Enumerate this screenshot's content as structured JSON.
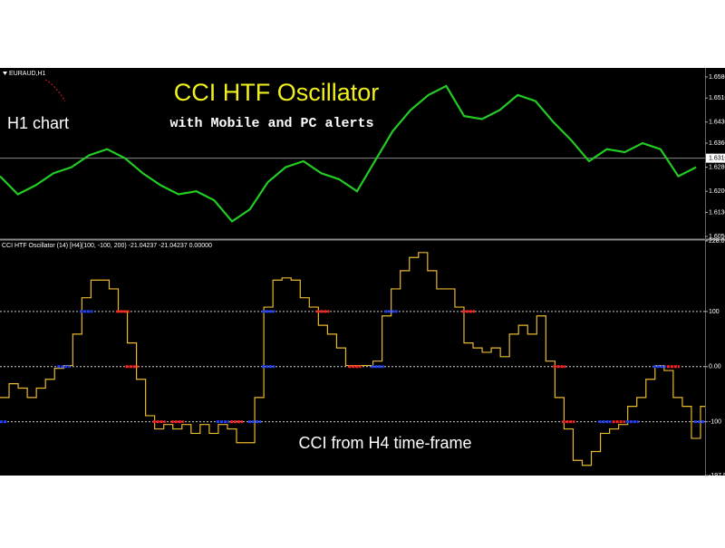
{
  "chart_data": [
    {
      "type": "line",
      "symbol": "EURAUD,H1",
      "title": "CCI HTF Oscillator",
      "subtitle": "with Mobile and PC alerts",
      "annotation": "H1 chart",
      "series": [
        {
          "color": "#22cc22",
          "values": [
            1.625,
            1.619,
            1.622,
            1.626,
            1.628,
            1.632,
            1.634,
            1.631,
            1.626,
            1.622,
            1.619,
            1.62,
            1.617,
            1.61,
            1.614,
            1.623,
            1.628,
            1.63,
            1.626,
            1.624,
            1.62,
            1.63,
            1.64,
            1.647,
            1.652,
            1.655,
            1.645,
            1.644,
            1.647,
            1.652,
            1.65,
            1.643,
            1.637,
            1.63,
            1.634,
            1.633,
            1.636,
            1.634,
            1.625,
            1.628
          ]
        }
      ],
      "ylim": [
        1.6044,
        1.661
      ],
      "yticks": [
        {
          "value": 1.658,
          "label": "1.6580"
        },
        {
          "value": 1.651,
          "label": "1.6510"
        },
        {
          "value": 1.643,
          "label": "1.6430"
        },
        {
          "value": 1.636,
          "label": "1.6360"
        },
        {
          "value": 1.628,
          "label": "1.6280"
        },
        {
          "value": 1.62,
          "label": "1.6200"
        },
        {
          "value": 1.613,
          "label": "1.6130"
        },
        {
          "value": 1.605,
          "label": "1.6050"
        }
      ],
      "current_price": {
        "value": 1.631,
        "label": "1.6310"
      }
    },
    {
      "type": "step",
      "header": "CCI HTF Oscillator (14) [H4](100, -100, 200) -21.04237 -21.04237 0.00000",
      "annotation": "CCI from H4 time-frame",
      "series": [
        {
          "color": "#e8b830",
          "values": [
            -56,
            -31,
            -39,
            -56,
            -39,
            -23,
            -3,
            2,
            59,
            125,
            157,
            157,
            141,
            100,
            43,
            -23,
            -89,
            -113,
            -105,
            -113,
            -105,
            -121,
            -105,
            -121,
            -105,
            -113,
            -138,
            -138,
            -56,
            108,
            157,
            161,
            157,
            125,
            108,
            75,
            59,
            34,
            2,
            2,
            2,
            10,
            92,
            141,
            174,
            198,
            207,
            174,
            141,
            141,
            108,
            43,
            34,
            26,
            34,
            18,
            59,
            75,
            59,
            92,
            10,
            -56,
            -113,
            -170,
            -179,
            -154,
            -121,
            -113,
            -105,
            -72,
            -56,
            -23,
            2,
            -7,
            -56,
            -72,
            -130,
            -72
          ]
        }
      ],
      "ylim": [
        -197.5,
        228.01
      ],
      "yticks": [
        228.01,
        100,
        {
          "value": 0,
          "label": "0.00"
        },
        -100,
        -197.5
      ],
      "levels": [
        100,
        0,
        -100
      ],
      "signals": [
        {
          "x": 0,
          "level": -100,
          "color": "#2040ff"
        },
        {
          "x": 7,
          "level": 0,
          "color": "#2040ff"
        },
        {
          "x": 9.5,
          "level": 100,
          "color": "#2040ff"
        },
        {
          "x": 13.5,
          "level": 100,
          "color": "#ff2020"
        },
        {
          "x": 14.5,
          "level": 0,
          "color": "#ff2020"
        },
        {
          "x": 17.5,
          "level": -100,
          "color": "#ff2020"
        },
        {
          "x": 19.5,
          "level": -100,
          "color": "#ff2020"
        },
        {
          "x": 24.5,
          "level": -100,
          "color": "#2040ff"
        },
        {
          "x": 26,
          "level": -100,
          "color": "#ff2020"
        },
        {
          "x": 28,
          "level": -100,
          "color": "#2040ff"
        },
        {
          "x": 29.5,
          "level": 0,
          "color": "#2040ff"
        },
        {
          "x": 29.5,
          "level": 100,
          "color": "#2040ff"
        },
        {
          "x": 35.5,
          "level": 100,
          "color": "#ff2020"
        },
        {
          "x": 39,
          "level": 0,
          "color": "#ff2020"
        },
        {
          "x": 41.5,
          "level": 0,
          "color": "#2040ff"
        },
        {
          "x": 43,
          "level": 100,
          "color": "#2040ff"
        },
        {
          "x": 51.5,
          "level": 100,
          "color": "#ff2020"
        },
        {
          "x": 61.5,
          "level": 0,
          "color": "#ff2020"
        },
        {
          "x": 62.5,
          "level": -100,
          "color": "#ff2020"
        },
        {
          "x": 66.5,
          "level": -100,
          "color": "#2040ff"
        },
        {
          "x": 68,
          "level": -100,
          "color": "#ff2020"
        },
        {
          "x": 69.5,
          "level": -100,
          "color": "#2040ff"
        },
        {
          "x": 72.5,
          "level": 0,
          "color": "#2040ff"
        },
        {
          "x": 74,
          "level": 0,
          "color": "#ff2020"
        },
        {
          "x": 77,
          "level": -100,
          "color": "#2040ff"
        }
      ]
    }
  ]
}
